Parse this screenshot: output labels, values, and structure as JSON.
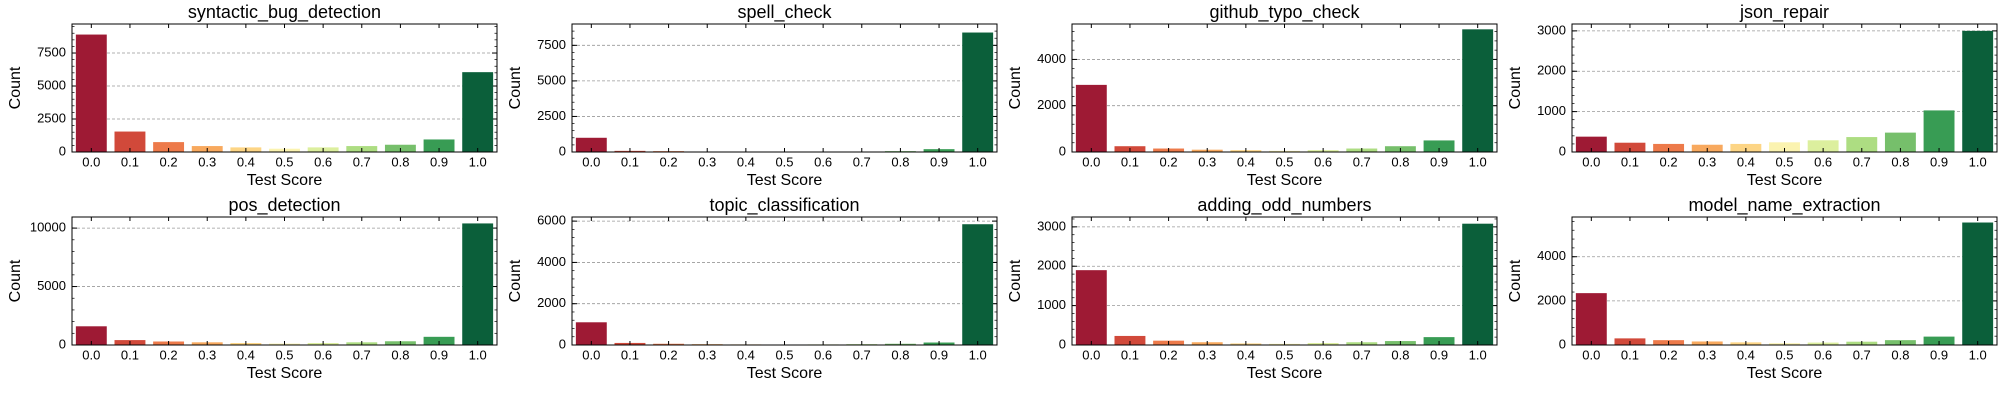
{
  "chart_data": [
    {
      "type": "bar",
      "title": "syntactic_bug_detection",
      "xlabel": "Test Score",
      "ylabel": "Count",
      "categories": [
        "0.0",
        "0.1",
        "0.2",
        "0.3",
        "0.4",
        "0.5",
        "0.6",
        "0.7",
        "0.8",
        "0.9",
        "1.0"
      ],
      "values": [
        8900,
        1550,
        750,
        450,
        350,
        250,
        350,
        450,
        550,
        950,
        6050
      ],
      "colors": [
        "#9e1a34",
        "#d1493a",
        "#ed7a4a",
        "#f8a95e",
        "#fdd585",
        "#fbf3b0",
        "#dcef9e",
        "#addd82",
        "#76bf6b",
        "#389c54",
        "#0b5f3a"
      ],
      "ylim": [
        0,
        9700
      ],
      "yticks": [
        0,
        2500,
        5000,
        7500
      ],
      "grid": true
    },
    {
      "type": "bar",
      "title": "spell_check",
      "xlabel": "Test Score",
      "ylabel": "Count",
      "categories": [
        "0.0",
        "0.1",
        "0.2",
        "0.3",
        "0.4",
        "0.5",
        "0.6",
        "0.7",
        "0.8",
        "0.9",
        "1.0"
      ],
      "values": [
        1000,
        80,
        60,
        30,
        20,
        15,
        20,
        30,
        60,
        200,
        8400
      ],
      "colors": [
        "#9e1a34",
        "#d1493a",
        "#ed7a4a",
        "#f8a95e",
        "#fdd585",
        "#fbf3b0",
        "#dcef9e",
        "#addd82",
        "#76bf6b",
        "#389c54",
        "#0b5f3a"
      ],
      "ylim": [
        0,
        9000
      ],
      "yticks": [
        0,
        2500,
        5000,
        7500
      ],
      "grid": true
    },
    {
      "type": "bar",
      "title": "github_typo_check",
      "xlabel": "Test Score",
      "ylabel": "Count",
      "categories": [
        "0.0",
        "0.1",
        "0.2",
        "0.3",
        "0.4",
        "0.5",
        "0.6",
        "0.7",
        "0.8",
        "0.9",
        "1.0"
      ],
      "values": [
        2900,
        250,
        150,
        100,
        80,
        50,
        80,
        150,
        250,
        500,
        5300
      ],
      "colors": [
        "#9e1a34",
        "#d1493a",
        "#ed7a4a",
        "#f8a95e",
        "#fdd585",
        "#fbf3b0",
        "#dcef9e",
        "#addd82",
        "#76bf6b",
        "#389c54",
        "#0b5f3a"
      ],
      "ylim": [
        0,
        5530
      ],
      "yticks": [
        0,
        2000,
        4000
      ],
      "grid": true
    },
    {
      "type": "bar",
      "title": "json_repair",
      "xlabel": "Test Score",
      "ylabel": "Count",
      "categories": [
        "0.0",
        "0.1",
        "0.2",
        "0.3",
        "0.4",
        "0.5",
        "0.6",
        "0.7",
        "0.8",
        "0.9",
        "1.0"
      ],
      "values": [
        380,
        230,
        200,
        180,
        200,
        240,
        290,
        370,
        480,
        1030,
        3000
      ],
      "colors": [
        "#9e1a34",
        "#d1493a",
        "#ed7a4a",
        "#f8a95e",
        "#fdd585",
        "#fbf3b0",
        "#dcef9e",
        "#addd82",
        "#76bf6b",
        "#389c54",
        "#0b5f3a"
      ],
      "ylim": [
        0,
        3170
      ],
      "yticks": [
        0,
        1000,
        2000,
        3000
      ],
      "grid": true
    },
    {
      "type": "bar",
      "title": "pos_detection",
      "xlabel": "Test Score",
      "ylabel": "Count",
      "categories": [
        "0.0",
        "0.1",
        "0.2",
        "0.3",
        "0.4",
        "0.5",
        "0.6",
        "0.7",
        "0.8",
        "0.9",
        "1.0"
      ],
      "values": [
        1600,
        420,
        300,
        230,
        170,
        120,
        170,
        230,
        320,
        700,
        10400
      ],
      "colors": [
        "#9e1a34",
        "#d1493a",
        "#ed7a4a",
        "#f8a95e",
        "#fdd585",
        "#fbf3b0",
        "#dcef9e",
        "#addd82",
        "#76bf6b",
        "#389c54",
        "#0b5f3a"
      ],
      "ylim": [
        0,
        10950
      ],
      "yticks": [
        0,
        5000,
        10000
      ],
      "grid": true
    },
    {
      "type": "bar",
      "title": "topic_classification",
      "xlabel": "Test Score",
      "ylabel": "Count",
      "categories": [
        "0.0",
        "0.1",
        "0.2",
        "0.3",
        "0.4",
        "0.5",
        "0.6",
        "0.7",
        "0.8",
        "0.9",
        "1.0"
      ],
      "values": [
        1100,
        100,
        60,
        40,
        30,
        20,
        30,
        40,
        60,
        120,
        5850
      ],
      "colors": [
        "#9e1a34",
        "#d1493a",
        "#ed7a4a",
        "#f8a95e",
        "#fdd585",
        "#fbf3b0",
        "#dcef9e",
        "#addd82",
        "#76bf6b",
        "#389c54",
        "#0b5f3a"
      ],
      "ylim": [
        0,
        6200
      ],
      "yticks": [
        0,
        2000,
        4000,
        6000
      ],
      "grid": true
    },
    {
      "type": "bar",
      "title": "adding_odd_numbers",
      "xlabel": "Test Score",
      "ylabel": "Count",
      "categories": [
        "0.0",
        "0.1",
        "0.2",
        "0.3",
        "0.4",
        "0.5",
        "0.6",
        "0.7",
        "0.8",
        "0.9",
        "1.0"
      ],
      "values": [
        1900,
        230,
        110,
        70,
        40,
        30,
        50,
        70,
        100,
        200,
        3080
      ],
      "colors": [
        "#9e1a34",
        "#d1493a",
        "#ed7a4a",
        "#f8a95e",
        "#fdd585",
        "#fbf3b0",
        "#dcef9e",
        "#addd82",
        "#76bf6b",
        "#389c54",
        "#0b5f3a"
      ],
      "ylim": [
        0,
        3250
      ],
      "yticks": [
        0,
        1000,
        2000,
        3000
      ],
      "grid": true
    },
    {
      "type": "bar",
      "title": "model_name_extraction",
      "xlabel": "Test Score",
      "ylabel": "Count",
      "categories": [
        "0.0",
        "0.1",
        "0.2",
        "0.3",
        "0.4",
        "0.5",
        "0.6",
        "0.7",
        "0.8",
        "0.9",
        "1.0"
      ],
      "values": [
        2350,
        300,
        220,
        160,
        120,
        80,
        110,
        150,
        220,
        380,
        5550
      ],
      "colors": [
        "#9e1a34",
        "#d1493a",
        "#ed7a4a",
        "#f8a95e",
        "#fdd585",
        "#fbf3b0",
        "#dcef9e",
        "#addd82",
        "#76bf6b",
        "#389c54",
        "#0b5f3a"
      ],
      "ylim": [
        0,
        5800
      ],
      "yticks": [
        0,
        2000,
        4000
      ],
      "grid": true
    }
  ]
}
